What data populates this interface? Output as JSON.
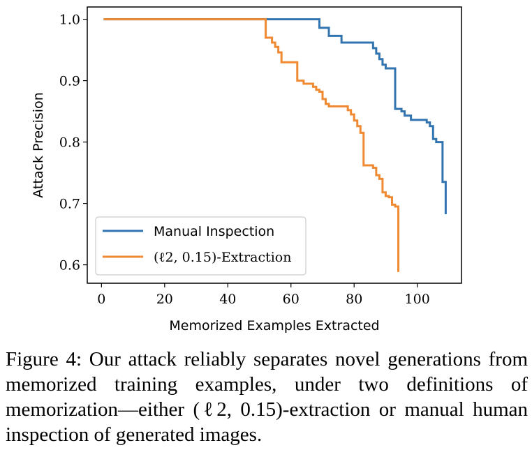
{
  "chart_data": {
    "type": "line",
    "title": "",
    "xlabel": "Memorized Examples Extracted",
    "ylabel": "Attack Precision",
    "xlim": [
      -4.5,
      114
    ],
    "ylim": [
      0.57,
      1.02
    ],
    "xticks": [
      0,
      20,
      40,
      60,
      80,
      100
    ],
    "yticks": [
      0.6,
      0.7,
      0.8,
      0.9,
      1.0
    ],
    "xtick_labels": [
      "0",
      "20",
      "40",
      "60",
      "80",
      "100"
    ],
    "ytick_labels": [
      "0.6",
      "0.7",
      "0.8",
      "0.9",
      "1.0"
    ],
    "grid": false,
    "legend_position": "bottom-left",
    "series": [
      {
        "name": "Manual Inspection",
        "color": "#3274b0",
        "step": true,
        "x": [
          1,
          67,
          69,
          70,
          71,
          72,
          74,
          75,
          76,
          77,
          78,
          86,
          87,
          88,
          89,
          90,
          92,
          93,
          94,
          95,
          96,
          97,
          98,
          99,
          100,
          102,
          103,
          104,
          105,
          106,
          107,
          108,
          109
        ],
        "y": [
          1.0,
          1.0,
          0.986,
          0.986,
          0.986,
          0.973,
          0.973,
          0.973,
          0.962,
          0.962,
          0.962,
          0.953,
          0.944,
          0.935,
          0.926,
          0.92,
          0.92,
          0.854,
          0.854,
          0.85,
          0.843,
          0.843,
          0.836,
          0.836,
          0.836,
          0.836,
          0.832,
          0.826,
          0.805,
          0.8,
          0.8,
          0.735,
          0.684
        ]
      },
      {
        "name": "(ℓ2, 0.15)-Extraction",
        "color": "#ef8a32",
        "step": true,
        "x": [
          1,
          51,
          52,
          54,
          55,
          56,
          57,
          61,
          62,
          64,
          66,
          67,
          68,
          69,
          70,
          71,
          72,
          74,
          78,
          79,
          80,
          81,
          82,
          83,
          84,
          86,
          87,
          88,
          89,
          90,
          91,
          92,
          93,
          94
        ],
        "y": [
          1.0,
          1.0,
          0.97,
          0.962,
          0.955,
          0.946,
          0.93,
          0.93,
          0.9,
          0.895,
          0.895,
          0.89,
          0.885,
          0.882,
          0.87,
          0.862,
          0.858,
          0.858,
          0.852,
          0.845,
          0.835,
          0.826,
          0.815,
          0.762,
          0.762,
          0.758,
          0.746,
          0.74,
          0.718,
          0.712,
          0.71,
          0.698,
          0.695,
          0.59
        ]
      }
    ]
  },
  "caption": {
    "text": "Figure 4:  Our attack reliably separates novel generations from memorized training examples, under two definitions of memorization—either (ℓ2, 0.15)-extraction or manual human inspection of generated images."
  }
}
